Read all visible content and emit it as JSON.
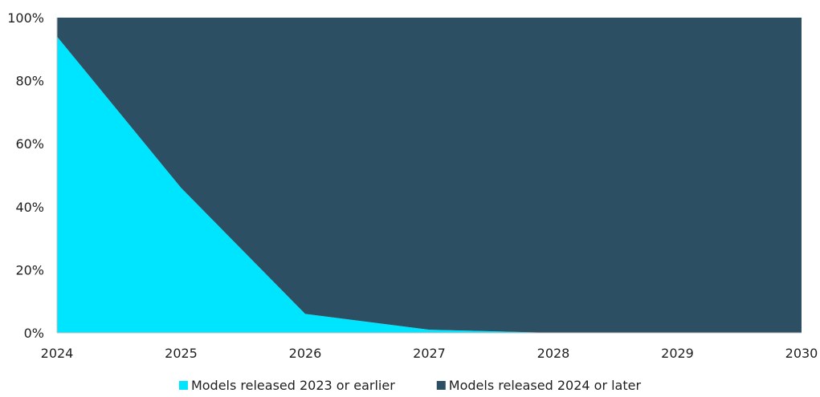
{
  "chart_data": {
    "type": "area",
    "stacked": true,
    "percent_stacked": true,
    "title": "",
    "xlabel": "",
    "ylabel": "",
    "x": [
      "2024",
      "2025",
      "2026",
      "2027",
      "2028",
      "2029",
      "2030"
    ],
    "y_ticks": [
      "0%",
      "20%",
      "40%",
      "60%",
      "80%",
      "100%"
    ],
    "ylim": [
      0,
      100
    ],
    "grid": false,
    "legend_position": "bottom",
    "series": [
      {
        "name": "Models released 2023 or earlier",
        "color": "#00e5ff",
        "values": [
          94,
          46,
          6,
          1,
          0,
          0,
          0
        ]
      },
      {
        "name": "Models released 2024 or later",
        "color": "#2d4f63",
        "values": [
          6,
          54,
          94,
          99,
          100,
          100,
          100
        ]
      }
    ]
  }
}
